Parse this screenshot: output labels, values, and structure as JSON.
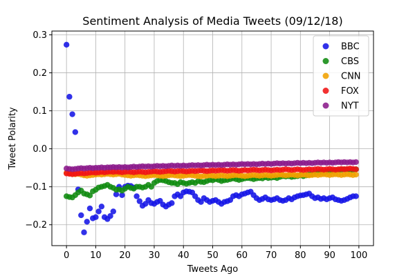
{
  "chart_data": {
    "type": "scatter",
    "title": "Sentiment Analysis of Media Tweets (09/12/18)",
    "xlabel": "Tweets Ago",
    "ylabel": "Tweet Polarity",
    "xlim": [
      -5,
      105
    ],
    "ylim": [
      -0.255,
      0.31
    ],
    "xticks": [
      0,
      10,
      20,
      30,
      40,
      50,
      60,
      70,
      80,
      90,
      100
    ],
    "yticks": [
      -0.2,
      -0.1,
      0.0,
      0.1,
      0.2,
      0.3
    ],
    "ytick_labels": [
      "−0.2",
      "−0.1",
      "0.0",
      "0.1",
      "0.2",
      "0.3"
    ],
    "grid": true,
    "legend_position": "top-right",
    "series": [
      {
        "name": "BBC",
        "color": "#1414e6",
        "x": [
          0,
          1,
          2,
          3,
          4,
          5,
          6,
          7,
          8,
          9,
          10,
          11,
          12,
          13,
          14,
          15,
          16,
          17,
          18,
          19,
          20,
          21,
          22,
          23,
          24,
          25,
          26,
          27,
          28,
          29,
          30,
          31,
          32,
          33,
          34,
          35,
          36,
          37,
          38,
          39,
          40,
          41,
          42,
          43,
          44,
          45,
          46,
          47,
          48,
          49,
          50,
          51,
          52,
          53,
          54,
          55,
          56,
          57,
          58,
          59,
          60,
          61,
          62,
          63,
          64,
          65,
          66,
          67,
          68,
          69,
          70,
          71,
          72,
          73,
          74,
          75,
          76,
          77,
          78,
          79,
          80,
          81,
          82,
          83,
          84,
          85,
          86,
          87,
          88,
          89,
          90,
          91,
          92,
          93,
          94,
          95,
          96,
          97,
          98,
          99
        ],
        "y": [
          0.274,
          0.137,
          0.091,
          0.044,
          -0.107,
          -0.175,
          -0.22,
          -0.192,
          -0.157,
          -0.183,
          -0.18,
          -0.165,
          -0.152,
          -0.18,
          -0.185,
          -0.177,
          -0.165,
          -0.12,
          -0.1,
          -0.122,
          -0.1,
          -0.097,
          -0.098,
          -0.102,
          -0.125,
          -0.138,
          -0.15,
          -0.145,
          -0.135,
          -0.143,
          -0.145,
          -0.14,
          -0.137,
          -0.147,
          -0.152,
          -0.147,
          -0.143,
          -0.125,
          -0.12,
          -0.125,
          -0.115,
          -0.112,
          -0.113,
          -0.115,
          -0.125,
          -0.135,
          -0.14,
          -0.13,
          -0.135,
          -0.14,
          -0.137,
          -0.135,
          -0.14,
          -0.145,
          -0.14,
          -0.138,
          -0.135,
          -0.125,
          -0.122,
          -0.125,
          -0.12,
          -0.118,
          -0.115,
          -0.113,
          -0.122,
          -0.13,
          -0.135,
          -0.132,
          -0.128,
          -0.133,
          -0.135,
          -0.133,
          -0.13,
          -0.135,
          -0.137,
          -0.135,
          -0.13,
          -0.133,
          -0.128,
          -0.125,
          -0.123,
          -0.122,
          -0.12,
          -0.118,
          -0.125,
          -0.13,
          -0.128,
          -0.132,
          -0.13,
          -0.133,
          -0.13,
          -0.128,
          -0.133,
          -0.135,
          -0.137,
          -0.135,
          -0.132,
          -0.128,
          -0.125,
          -0.125
        ]
      },
      {
        "name": "CBS",
        "color": "#108b10",
        "x": [
          0,
          1,
          2,
          3,
          4,
          5,
          6,
          7,
          8,
          9,
          10,
          11,
          12,
          13,
          14,
          15,
          16,
          17,
          18,
          19,
          20,
          21,
          22,
          23,
          24,
          25,
          26,
          27,
          28,
          29,
          30,
          31,
          32,
          33,
          34,
          35,
          36,
          37,
          38,
          39,
          40,
          41,
          42,
          43,
          44,
          45,
          46,
          47,
          48,
          49,
          50,
          51,
          52,
          53,
          54,
          55,
          56,
          57,
          58,
          59,
          60,
          61,
          62,
          63,
          64,
          65,
          66,
          67,
          68,
          69,
          70,
          71,
          72,
          73,
          74,
          75,
          76,
          77,
          78,
          79,
          80,
          81,
          82,
          83,
          84,
          85,
          86,
          87,
          88,
          89,
          90,
          91,
          92,
          93,
          94,
          95,
          96,
          97,
          98,
          99
        ],
        "y": [
          -0.125,
          -0.127,
          -0.128,
          -0.122,
          -0.115,
          -0.11,
          -0.118,
          -0.12,
          -0.123,
          -0.112,
          -0.108,
          -0.102,
          -0.1,
          -0.098,
          -0.095,
          -0.1,
          -0.103,
          -0.108,
          -0.107,
          -0.11,
          -0.105,
          -0.1,
          -0.103,
          -0.105,
          -0.1,
          -0.1,
          -0.102,
          -0.1,
          -0.095,
          -0.1,
          -0.09,
          -0.085,
          -0.082,
          -0.083,
          -0.085,
          -0.088,
          -0.09,
          -0.09,
          -0.093,
          -0.088,
          -0.09,
          -0.092,
          -0.09,
          -0.088,
          -0.09,
          -0.085,
          -0.087,
          -0.088,
          -0.085,
          -0.082,
          -0.083,
          -0.08,
          -0.082,
          -0.085,
          -0.083,
          -0.082,
          -0.08,
          -0.078,
          -0.08,
          -0.082,
          -0.08,
          -0.078,
          -0.077,
          -0.078,
          -0.08,
          -0.078,
          -0.077,
          -0.078,
          -0.075,
          -0.077,
          -0.076,
          -0.075,
          -0.077,
          -0.074,
          -0.072,
          -0.073,
          -0.072,
          -0.074,
          -0.073,
          -0.072,
          -0.07,
          -0.072,
          -0.07,
          -0.068,
          -0.067,
          -0.065,
          -0.063,
          -0.062,
          -0.063,
          -0.06,
          -0.06,
          -0.058,
          -0.057,
          -0.056,
          -0.055,
          -0.054,
          -0.055,
          -0.056,
          -0.055,
          -0.054
        ]
      },
      {
        "name": "CNN",
        "color": "#f0a000",
        "x": [
          0,
          1,
          2,
          3,
          4,
          5,
          6,
          7,
          8,
          9,
          10,
          11,
          12,
          13,
          14,
          15,
          16,
          17,
          18,
          19,
          20,
          21,
          22,
          23,
          24,
          25,
          26,
          27,
          28,
          29,
          30,
          31,
          32,
          33,
          34,
          35,
          36,
          37,
          38,
          39,
          40,
          41,
          42,
          43,
          44,
          45,
          46,
          47,
          48,
          49,
          50,
          51,
          52,
          53,
          54,
          55,
          56,
          57,
          58,
          59,
          60,
          61,
          62,
          63,
          64,
          65,
          66,
          67,
          68,
          69,
          70,
          71,
          72,
          73,
          74,
          75,
          76,
          77,
          78,
          79,
          80,
          81,
          82,
          83,
          84,
          85,
          86,
          87,
          88,
          89,
          90,
          91,
          92,
          93,
          94,
          95,
          96,
          97,
          98,
          99
        ],
        "y": [
          -0.063,
          -0.065,
          -0.066,
          -0.067,
          -0.066,
          -0.068,
          -0.07,
          -0.071,
          -0.07,
          -0.069,
          -0.068,
          -0.067,
          -0.068,
          -0.067,
          -0.066,
          -0.067,
          -0.068,
          -0.067,
          -0.066,
          -0.068,
          -0.069,
          -0.07,
          -0.071,
          -0.07,
          -0.069,
          -0.07,
          -0.071,
          -0.072,
          -0.071,
          -0.07,
          -0.069,
          -0.07,
          -0.071,
          -0.072,
          -0.071,
          -0.07,
          -0.069,
          -0.07,
          -0.071,
          -0.072,
          -0.071,
          -0.07,
          -0.069,
          -0.07,
          -0.071,
          -0.072,
          -0.073,
          -0.072,
          -0.071,
          -0.07,
          -0.071,
          -0.072,
          -0.071,
          -0.07,
          -0.071,
          -0.072,
          -0.071,
          -0.07,
          -0.069,
          -0.07,
          -0.071,
          -0.072,
          -0.071,
          -0.07,
          -0.069,
          -0.07,
          -0.071,
          -0.07,
          -0.069,
          -0.07,
          -0.071,
          -0.07,
          -0.069,
          -0.068,
          -0.069,
          -0.07,
          -0.069,
          -0.068,
          -0.069,
          -0.07,
          -0.069,
          -0.068,
          -0.069,
          -0.07,
          -0.069,
          -0.068,
          -0.069,
          -0.068,
          -0.067,
          -0.068,
          -0.069,
          -0.068,
          -0.067,
          -0.068,
          -0.069,
          -0.068,
          -0.067,
          -0.068,
          -0.069,
          -0.068
        ]
      },
      {
        "name": "FOX",
        "color": "#f01414",
        "x": [
          0,
          1,
          2,
          3,
          4,
          5,
          6,
          7,
          8,
          9,
          10,
          11,
          12,
          13,
          14,
          15,
          16,
          17,
          18,
          19,
          20,
          21,
          22,
          23,
          24,
          25,
          26,
          27,
          28,
          29,
          30,
          31,
          32,
          33,
          34,
          35,
          36,
          37,
          38,
          39,
          40,
          41,
          42,
          43,
          44,
          45,
          46,
          47,
          48,
          49,
          50,
          51,
          52,
          53,
          54,
          55,
          56,
          57,
          58,
          59,
          60,
          61,
          62,
          63,
          64,
          65,
          66,
          67,
          68,
          69,
          70,
          71,
          72,
          73,
          74,
          75,
          76,
          77,
          78,
          79,
          80,
          81,
          82,
          83,
          84,
          85,
          86,
          87,
          88,
          89,
          90,
          91,
          92,
          93,
          94,
          95,
          96,
          97,
          98,
          99
        ],
        "y": [
          -0.065,
          -0.066,
          -0.067,
          -0.066,
          -0.065,
          -0.064,
          -0.065,
          -0.064,
          -0.063,
          -0.062,
          -0.063,
          -0.062,
          -0.061,
          -0.062,
          -0.061,
          -0.06,
          -0.061,
          -0.06,
          -0.061,
          -0.062,
          -0.061,
          -0.06,
          -0.061,
          -0.062,
          -0.061,
          -0.06,
          -0.061,
          -0.062,
          -0.061,
          -0.06,
          -0.059,
          -0.06,
          -0.061,
          -0.06,
          -0.059,
          -0.058,
          -0.059,
          -0.06,
          -0.059,
          -0.058,
          -0.059,
          -0.06,
          -0.059,
          -0.058,
          -0.059,
          -0.058,
          -0.057,
          -0.058,
          -0.059,
          -0.058,
          -0.057,
          -0.058,
          -0.057,
          -0.056,
          -0.057,
          -0.058,
          -0.057,
          -0.056,
          -0.057,
          -0.058,
          -0.057,
          -0.056,
          -0.057,
          -0.056,
          -0.055,
          -0.056,
          -0.057,
          -0.056,
          -0.055,
          -0.056,
          -0.057,
          -0.056,
          -0.055,
          -0.056,
          -0.055,
          -0.054,
          -0.055,
          -0.056,
          -0.055,
          -0.054,
          -0.055,
          -0.056,
          -0.055,
          -0.054,
          -0.055,
          -0.054,
          -0.053,
          -0.054,
          -0.055,
          -0.054,
          -0.053,
          -0.054,
          -0.055,
          -0.054,
          -0.053,
          -0.054,
          -0.053,
          -0.052,
          -0.053,
          -0.054
        ]
      },
      {
        "name": "NYT",
        "color": "#8b1a8b",
        "x": [
          0,
          1,
          2,
          3,
          4,
          5,
          6,
          7,
          8,
          9,
          10,
          11,
          12,
          13,
          14,
          15,
          16,
          17,
          18,
          19,
          20,
          21,
          22,
          23,
          24,
          25,
          26,
          27,
          28,
          29,
          30,
          31,
          32,
          33,
          34,
          35,
          36,
          37,
          38,
          39,
          40,
          41,
          42,
          43,
          44,
          45,
          46,
          47,
          48,
          49,
          50,
          51,
          52,
          53,
          54,
          55,
          56,
          57,
          58,
          59,
          60,
          61,
          62,
          63,
          64,
          65,
          66,
          67,
          68,
          69,
          70,
          71,
          72,
          73,
          74,
          75,
          76,
          77,
          78,
          79,
          80,
          81,
          82,
          83,
          84,
          85,
          86,
          87,
          88,
          89,
          90,
          91,
          92,
          93,
          94,
          95,
          96,
          97,
          98,
          99
        ],
        "y": [
          -0.052,
          -0.053,
          -0.054,
          -0.053,
          -0.052,
          -0.051,
          -0.052,
          -0.051,
          -0.05,
          -0.051,
          -0.05,
          -0.05,
          -0.049,
          -0.05,
          -0.049,
          -0.049,
          -0.048,
          -0.049,
          -0.048,
          -0.049,
          -0.048,
          -0.049,
          -0.048,
          -0.047,
          -0.048,
          -0.047,
          -0.046,
          -0.047,
          -0.046,
          -0.047,
          -0.046,
          -0.045,
          -0.046,
          -0.045,
          -0.046,
          -0.045,
          -0.044,
          -0.045,
          -0.044,
          -0.045,
          -0.044,
          -0.045,
          -0.044,
          -0.043,
          -0.044,
          -0.043,
          -0.044,
          -0.043,
          -0.042,
          -0.043,
          -0.042,
          -0.043,
          -0.042,
          -0.043,
          -0.042,
          -0.041,
          -0.042,
          -0.041,
          -0.042,
          -0.041,
          -0.04,
          -0.041,
          -0.04,
          -0.041,
          -0.04,
          -0.041,
          -0.04,
          -0.039,
          -0.04,
          -0.039,
          -0.04,
          -0.039,
          -0.038,
          -0.039,
          -0.038,
          -0.039,
          -0.038,
          -0.039,
          -0.038,
          -0.037,
          -0.038,
          -0.037,
          -0.038,
          -0.037,
          -0.038,
          -0.037,
          -0.036,
          -0.037,
          -0.036,
          -0.037,
          -0.036,
          -0.037,
          -0.036,
          -0.035,
          -0.036,
          -0.035,
          -0.036,
          -0.035,
          -0.036,
          -0.035
        ]
      }
    ]
  }
}
